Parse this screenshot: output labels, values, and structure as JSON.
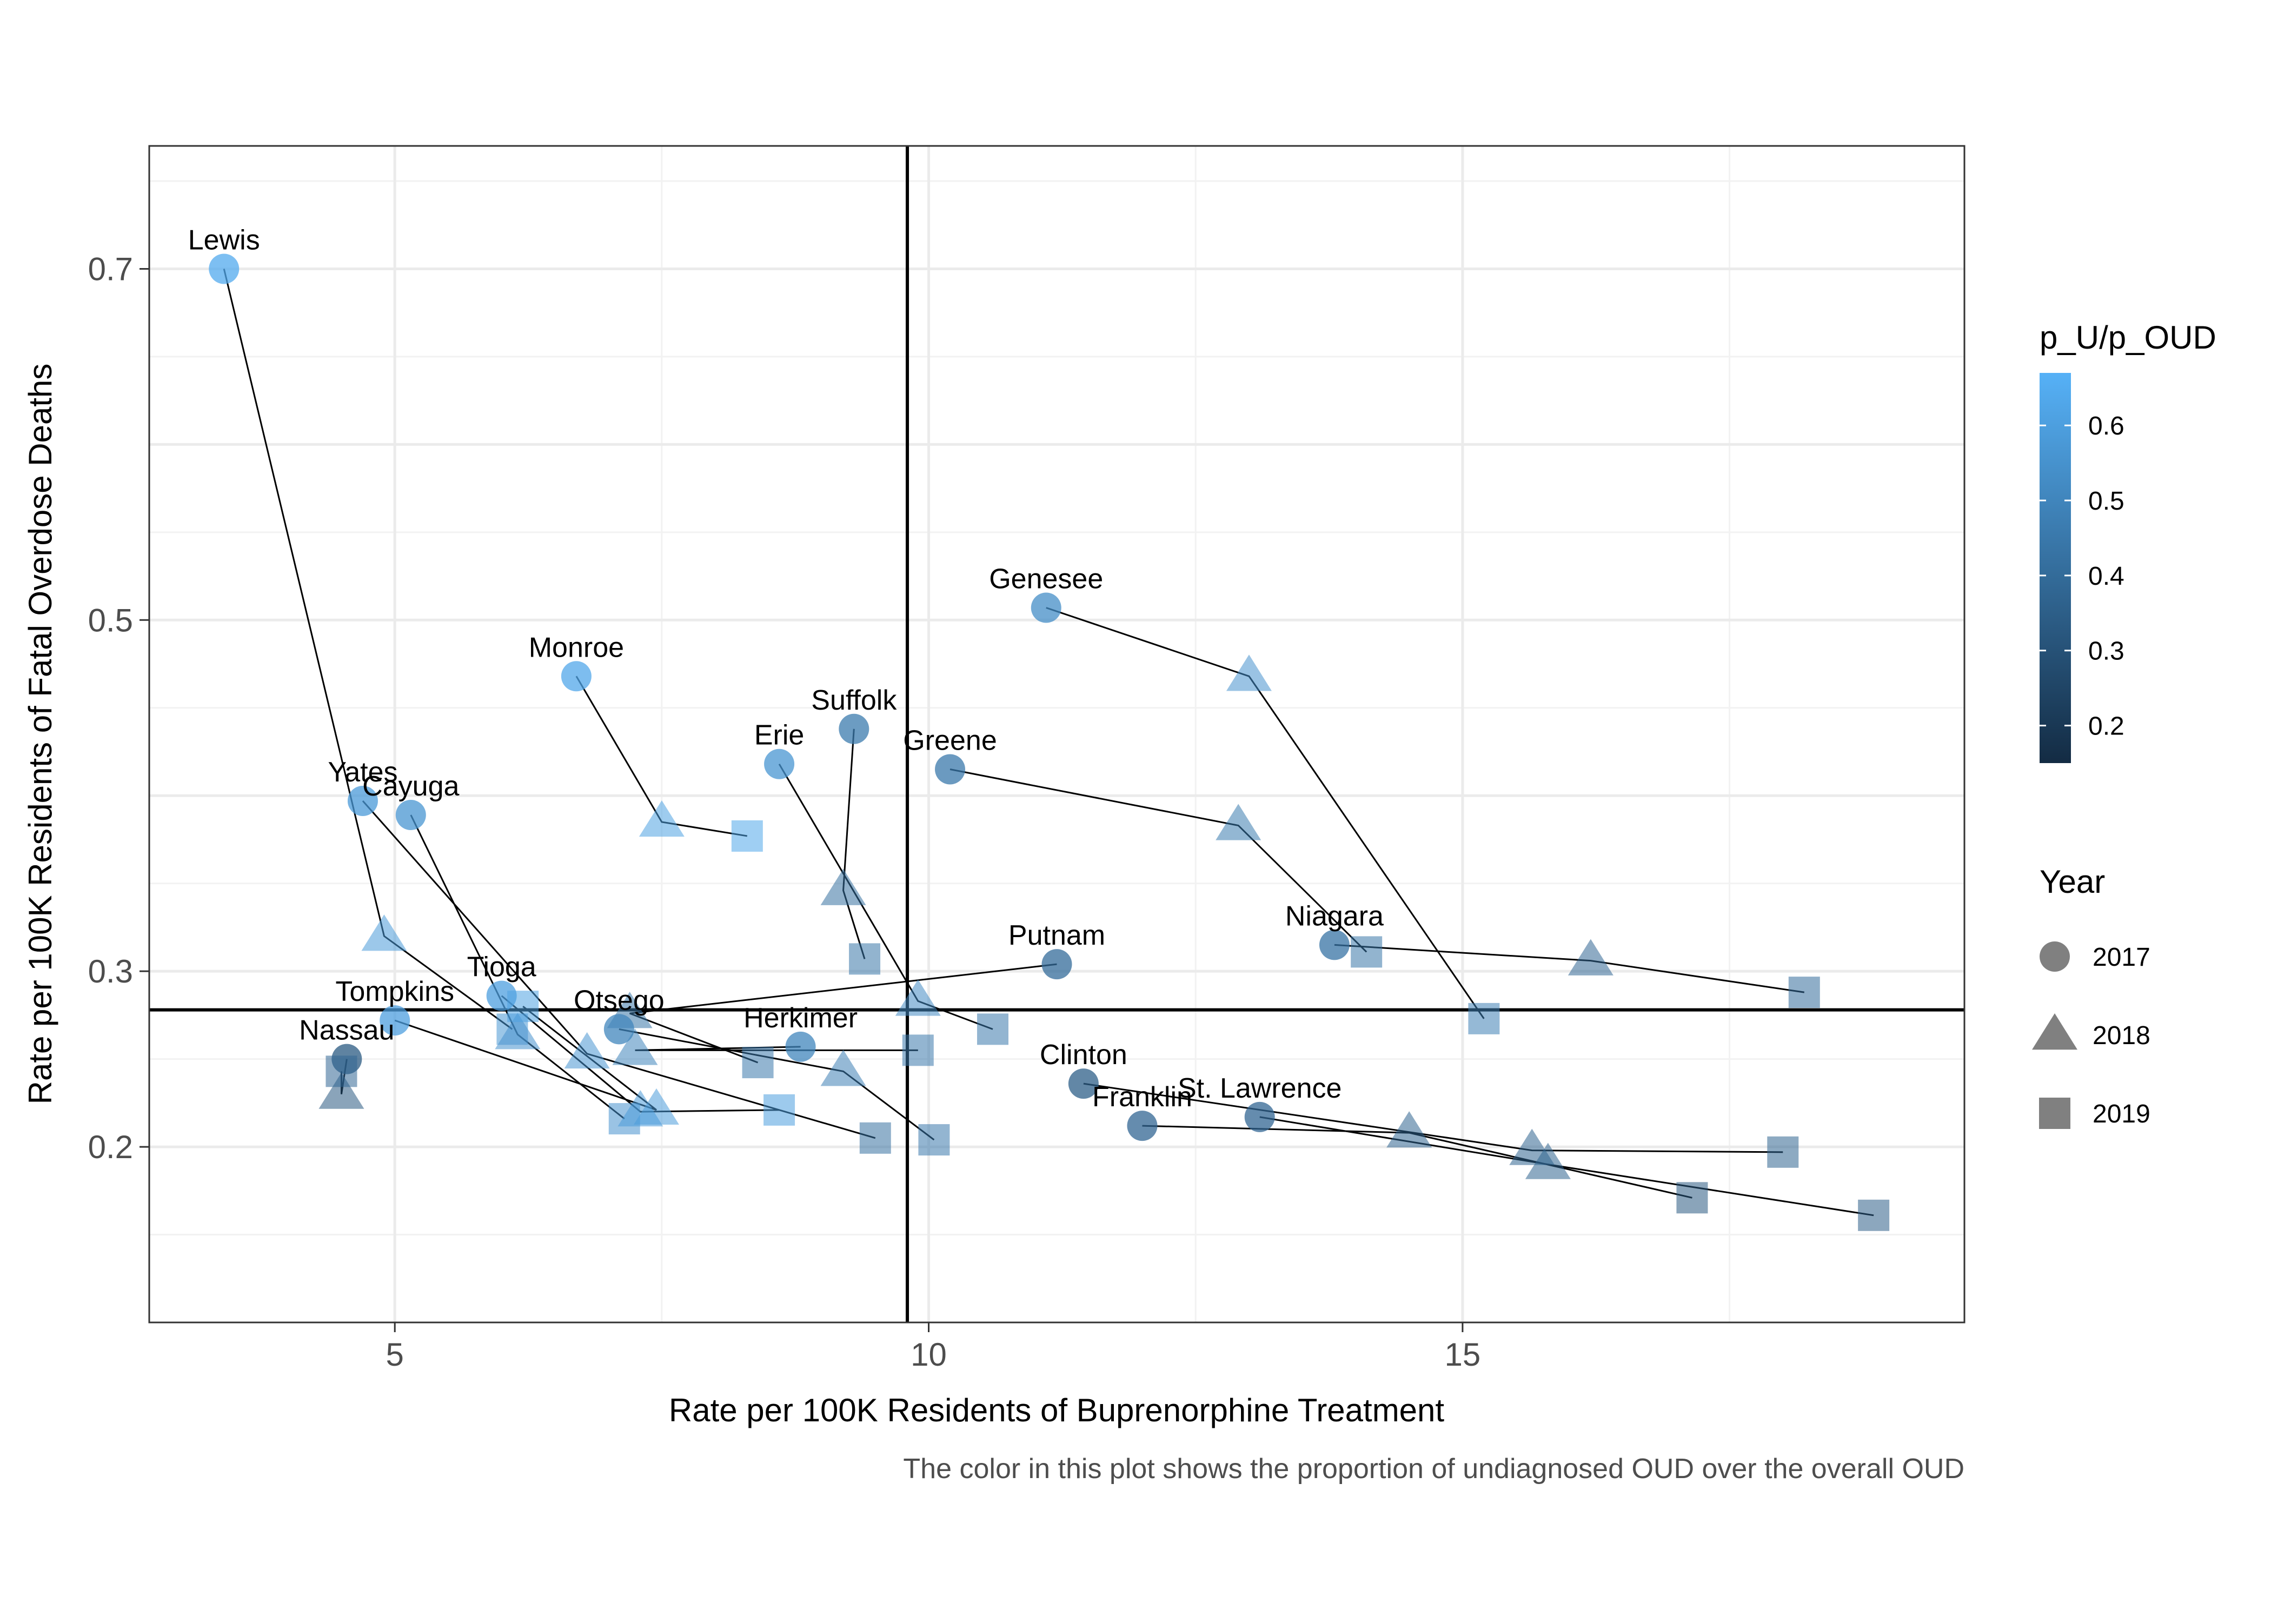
{
  "chart_data": {
    "type": "scatter",
    "title": "",
    "xlabel": "Rate per 100K Residents of Buprenorphine Treatment",
    "ylabel": "Rate per 100K Residents of Fatal Overdose Deaths",
    "caption": "The color in this plot shows the proportion of undiagnosed OUD over the overall OUD",
    "xlim": [
      2.7,
      19.7
    ],
    "ylim": [
      0.1,
      0.77
    ],
    "x_ticks": [
      5,
      10,
      15
    ],
    "y_ticks": [
      0.2,
      0.3,
      0.5,
      0.7
    ],
    "y_tick_labels": [
      "0.2",
      "0.3",
      "0.5",
      "0.7"
    ],
    "reference_lines": {
      "vertical_x": 9.8,
      "horizontal_y": 0.278
    },
    "grid": true,
    "legend_placement": "right",
    "color_legend": {
      "title": "p_U/p_OUD",
      "ticks": [
        0.6,
        0.5,
        0.4,
        0.3,
        0.2
      ],
      "range": [
        0.15,
        0.67
      ],
      "low_color": "#132B43",
      "high_color": "#56B1F7"
    },
    "shape_legend": {
      "title": "Year",
      "entries": [
        {
          "label": "2017",
          "shape": "circle"
        },
        {
          "label": "2018",
          "shape": "triangle"
        },
        {
          "label": "2019",
          "shape": "square"
        }
      ]
    },
    "series": [
      {
        "name": "Lewis",
        "label": "Lewis",
        "points": [
          {
            "year": "2017",
            "x": 3.4,
            "y": 0.7,
            "p": 0.64
          },
          {
            "year": "2018",
            "x": 4.9,
            "y": 0.32,
            "p": 0.58
          },
          {
            "year": "2019",
            "x": 6.1,
            "y": 0.267,
            "p": 0.57
          }
        ]
      },
      {
        "name": "Yates",
        "label": "Yates",
        "points": [
          {
            "year": "2017",
            "x": 4.7,
            "y": 0.397,
            "p": 0.58
          },
          {
            "year": "2018",
            "x": 6.8,
            "y": 0.253,
            "p": 0.56
          },
          {
            "year": "2019",
            "x": 9.5,
            "y": 0.205,
            "p": 0.42
          }
        ]
      },
      {
        "name": "Cayuga",
        "label": "Cayuga",
        "points": [
          {
            "year": "2017",
            "x": 5.15,
            "y": 0.389,
            "p": 0.56
          },
          {
            "year": "2018",
            "x": 6.15,
            "y": 0.264,
            "p": 0.55
          },
          {
            "year": "2019",
            "x": 7.15,
            "y": 0.216,
            "p": 0.55
          }
        ]
      },
      {
        "name": "Monroe",
        "label": "Monroe",
        "points": [
          {
            "year": "2017",
            "x": 6.7,
            "y": 0.468,
            "p": 0.63
          },
          {
            "year": "2018",
            "x": 7.5,
            "y": 0.385,
            "p": 0.61
          },
          {
            "year": "2019",
            "x": 8.3,
            "y": 0.377,
            "p": 0.63
          }
        ]
      },
      {
        "name": "Erie",
        "label": "Erie",
        "points": [
          {
            "year": "2017",
            "x": 8.6,
            "y": 0.418,
            "p": 0.56
          },
          {
            "year": "2018",
            "x": 9.9,
            "y": 0.283,
            "p": 0.52
          },
          {
            "year": "2019",
            "x": 10.6,
            "y": 0.267,
            "p": 0.45
          }
        ]
      },
      {
        "name": "Suffolk",
        "label": "Suffolk",
        "points": [
          {
            "year": "2017",
            "x": 9.3,
            "y": 0.438,
            "p": 0.46
          },
          {
            "year": "2018",
            "x": 9.2,
            "y": 0.346,
            "p": 0.42
          },
          {
            "year": "2019",
            "x": 9.4,
            "y": 0.307,
            "p": 0.44
          }
        ]
      },
      {
        "name": "Greene",
        "label": "Greene",
        "points": [
          {
            "year": "2017",
            "x": 10.2,
            "y": 0.415,
            "p": 0.45
          },
          {
            "year": "2018",
            "x": 12.9,
            "y": 0.383,
            "p": 0.46
          },
          {
            "year": "2019",
            "x": 14.1,
            "y": 0.311,
            "p": 0.44
          }
        ]
      },
      {
        "name": "Genesee",
        "label": "Genesee",
        "points": [
          {
            "year": "2017",
            "x": 11.1,
            "y": 0.507,
            "p": 0.53
          },
          {
            "year": "2018",
            "x": 13.0,
            "y": 0.468,
            "p": 0.55
          },
          {
            "year": "2019",
            "x": 15.2,
            "y": 0.273,
            "p": 0.48
          }
        ]
      },
      {
        "name": "Putnam",
        "label": "Putnam",
        "points": [
          {
            "year": "2017",
            "x": 11.2,
            "y": 0.304,
            "p": 0.4
          },
          {
            "year": "2018",
            "x": 7.2,
            "y": 0.276,
            "p": 0.44
          },
          {
            "year": "2019",
            "x": 8.4,
            "y": 0.248,
            "p": 0.45
          }
        ]
      },
      {
        "name": "Niagara",
        "label": "Niagara",
        "points": [
          {
            "year": "2017",
            "x": 13.8,
            "y": 0.315,
            "p": 0.43
          },
          {
            "year": "2018",
            "x": 16.2,
            "y": 0.306,
            "p": 0.38
          },
          {
            "year": "2019",
            "x": 18.2,
            "y": 0.288,
            "p": 0.4
          }
        ]
      },
      {
        "name": "Tioga",
        "label": "Tioga",
        "points": [
          {
            "year": "2017",
            "x": 6.0,
            "y": 0.286,
            "p": 0.6
          },
          {
            "year": "2018",
            "x": 7.3,
            "y": 0.22,
            "p": 0.58
          },
          {
            "year": "2019",
            "x": 8.6,
            "y": 0.221,
            "p": 0.6
          }
        ]
      },
      {
        "name": "Tompkins",
        "label": "Tompkins",
        "points": [
          {
            "year": "2017",
            "x": 5.0,
            "y": 0.272,
            "p": 0.6
          },
          {
            "year": "2018",
            "x": 7.45,
            "y": 0.221,
            "p": 0.59
          },
          {
            "year": "2019",
            "x": 6.2,
            "y": 0.28,
            "p": 0.61
          }
        ]
      },
      {
        "name": "Otsego",
        "label": "Otsego",
        "points": [
          {
            "year": "2017",
            "x": 7.1,
            "y": 0.267,
            "p": 0.5
          },
          {
            "year": "2018",
            "x": 9.2,
            "y": 0.243,
            "p": 0.48
          },
          {
            "year": "2019",
            "x": 10.05,
            "y": 0.204,
            "p": 0.45
          }
        ]
      },
      {
        "name": "Herkimer",
        "label": "Herkimer",
        "points": [
          {
            "year": "2017",
            "x": 8.8,
            "y": 0.257,
            "p": 0.5
          },
          {
            "year": "2018",
            "x": 7.25,
            "y": 0.255,
            "p": 0.5
          },
          {
            "year": "2019",
            "x": 9.9,
            "y": 0.255,
            "p": 0.45
          }
        ]
      },
      {
        "name": "Nassau",
        "label": "Nassau",
        "points": [
          {
            "year": "2017",
            "x": 4.55,
            "y": 0.25,
            "p": 0.33
          },
          {
            "year": "2018",
            "x": 4.5,
            "y": 0.23,
            "p": 0.33
          },
          {
            "year": "2019",
            "x": 4.5,
            "y": 0.243,
            "p": 0.38
          }
        ]
      },
      {
        "name": "Clinton",
        "label": "Clinton",
        "points": [
          {
            "year": "2017",
            "x": 11.45,
            "y": 0.236,
            "p": 0.35
          },
          {
            "year": "2018",
            "x": 15.65,
            "y": 0.198,
            "p": 0.37
          },
          {
            "year": "2019",
            "x": 18.0,
            "y": 0.197,
            "p": 0.37
          }
        ]
      },
      {
        "name": "St. Lawrence",
        "label": "St. Lawrence",
        "points": [
          {
            "year": "2017",
            "x": 13.1,
            "y": 0.217,
            "p": 0.38
          },
          {
            "year": "2018",
            "x": 15.8,
            "y": 0.19,
            "p": 0.37
          },
          {
            "year": "2019",
            "x": 18.85,
            "y": 0.161,
            "p": 0.35
          }
        ]
      },
      {
        "name": "Franklin",
        "label": "Franklin",
        "points": [
          {
            "year": "2017",
            "x": 12.0,
            "y": 0.212,
            "p": 0.38
          },
          {
            "year": "2018",
            "x": 14.5,
            "y": 0.208,
            "p": 0.37
          },
          {
            "year": "2019",
            "x": 17.15,
            "y": 0.171,
            "p": 0.33
          }
        ]
      }
    ]
  }
}
